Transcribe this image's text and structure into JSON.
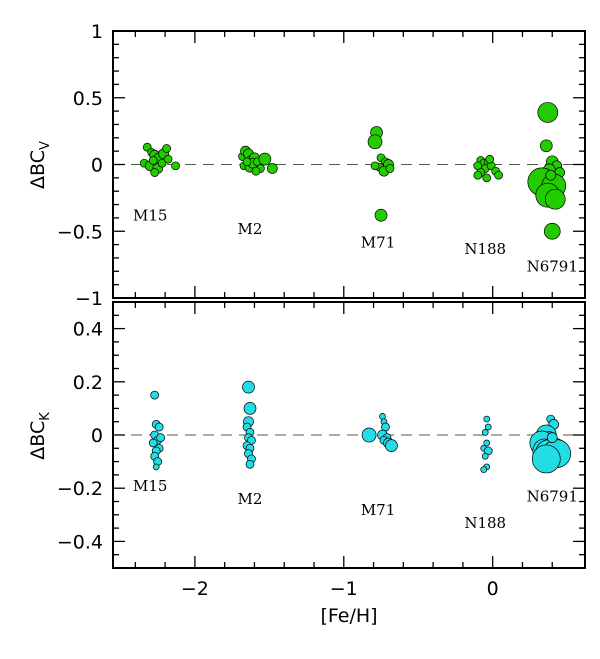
{
  "chart_data": [
    {
      "type": "scatter",
      "panel": "top",
      "ylabel_main": "ΔBC",
      "ylabel_sub": "V",
      "xlim": [
        -2.55,
        0.62
      ],
      "ylim": [
        -1,
        1
      ],
      "yticks": [
        {
          "v": 1,
          "label": "1"
        },
        {
          "v": 0.5,
          "label": "0.5"
        },
        {
          "v": 0,
          "label": "0"
        },
        {
          "v": -0.5,
          "label": "−0.5"
        },
        {
          "v": -1,
          "label": "−1"
        }
      ],
      "reference_line": 0,
      "marker_color": "#22cc00",
      "clusters": [
        {
          "name": "M15",
          "label_pos": {
            "x": -2.3,
            "y": -0.42
          },
          "points": [
            [
              -2.32,
              0.13
            ],
            [
              -2.29,
              0.09
            ],
            [
              -2.27,
              0.07
            ],
            [
              -2.24,
              0.05
            ],
            [
              -2.21,
              0.08
            ],
            [
              -2.19,
              0.12
            ],
            [
              -2.34,
              0.01
            ],
            [
              -2.3,
              -0.01
            ],
            [
              -2.28,
              0.03
            ],
            [
              -2.25,
              -0.03
            ],
            [
              -2.22,
              0.01
            ],
            [
              -2.27,
              -0.06
            ],
            [
              -2.18,
              0.04
            ],
            [
              -2.13,
              -0.01
            ]
          ],
          "sizes": [
            4,
            4,
            5,
            5,
            5,
            4,
            4,
            5,
            4,
            5,
            4,
            4,
            4,
            4
          ]
        },
        {
          "name": "M2",
          "label_pos": {
            "x": -1.63,
            "y": -0.52
          },
          "points": [
            [
              -1.68,
              0.06
            ],
            [
              -1.66,
              0.1
            ],
            [
              -1.64,
              0.08
            ],
            [
              -1.62,
              0.03
            ],
            [
              -1.6,
              0.05
            ],
            [
              -1.67,
              -0.01
            ],
            [
              -1.63,
              -0.02
            ],
            [
              -1.61,
              0.01
            ],
            [
              -1.58,
              0.02
            ],
            [
              -1.56,
              -0.03
            ],
            [
              -1.53,
              0.04
            ],
            [
              -1.48,
              -0.03
            ],
            [
              -1.65,
              0.02
            ],
            [
              -1.59,
              -0.05
            ]
          ],
          "sizes": [
            4,
            5,
            5,
            5,
            5,
            4,
            5,
            5,
            4,
            4,
            6,
            5,
            4,
            4
          ]
        },
        {
          "name": "M71",
          "label_pos": {
            "x": -0.77,
            "y": -0.62
          },
          "points": [
            [
              -0.78,
              0.24
            ],
            [
              -0.79,
              0.17
            ],
            [
              -0.75,
              0.05
            ],
            [
              -0.72,
              0.02
            ],
            [
              -0.7,
              0.0
            ],
            [
              -0.76,
              -0.02
            ],
            [
              -0.73,
              -0.05
            ],
            [
              -0.79,
              -0.01
            ],
            [
              -0.69,
              -0.03
            ],
            [
              -0.75,
              -0.38
            ]
          ],
          "sizes": [
            6,
            7,
            4,
            4,
            5,
            4,
            5,
            4,
            4,
            6
          ]
        },
        {
          "name": "N188",
          "label_pos": {
            "x": -0.05,
            "y": -0.67
          },
          "points": [
            [
              -0.08,
              0.03
            ],
            [
              -0.06,
              0.01
            ],
            [
              -0.03,
              0.02
            ],
            [
              -0.1,
              -0.01
            ],
            [
              -0.05,
              -0.03
            ],
            [
              -0.01,
              -0.01
            ],
            [
              -0.08,
              -0.06
            ],
            [
              -0.04,
              -0.1
            ],
            [
              0.02,
              -0.05
            ],
            [
              0.04,
              -0.08
            ],
            [
              -0.1,
              -0.08
            ],
            [
              -0.02,
              0.04
            ]
          ],
          "sizes": [
            4,
            4,
            4,
            4,
            4,
            4,
            4,
            4,
            4,
            4,
            4,
            4
          ]
        },
        {
          "name": "N6791",
          "label_pos": {
            "x": 0.4,
            "y": -0.8
          },
          "points": [
            [
              0.37,
              0.39
            ],
            [
              0.36,
              0.14
            ],
            [
              0.4,
              0.02
            ],
            [
              0.43,
              -0.01
            ],
            [
              0.38,
              -0.04
            ],
            [
              0.45,
              -0.06
            ],
            [
              0.33,
              -0.13
            ],
            [
              0.41,
              -0.16
            ],
            [
              0.37,
              -0.23
            ],
            [
              0.42,
              -0.26
            ],
            [
              0.4,
              -0.5
            ],
            [
              0.39,
              -0.08
            ]
          ],
          "sizes": [
            10,
            6,
            6,
            5,
            6,
            5,
            14,
            12,
            12,
            10,
            8,
            5
          ]
        }
      ]
    },
    {
      "type": "scatter",
      "panel": "bottom",
      "xlabel": "[Fe/H]",
      "ylabel_main": "ΔBC",
      "ylabel_sub": "K",
      "xlim": [
        -2.55,
        0.62
      ],
      "ylim": [
        -0.5,
        0.5
      ],
      "xticks": [
        {
          "v": -2,
          "label": "−2"
        },
        {
          "v": -1,
          "label": "−1"
        },
        {
          "v": 0,
          "label": "0"
        }
      ],
      "yticks": [
        {
          "v": 0.4,
          "label": "0.4"
        },
        {
          "v": 0.2,
          "label": "0.2"
        },
        {
          "v": 0,
          "label": "0"
        },
        {
          "v": -0.2,
          "label": "−0.2"
        },
        {
          "v": -0.4,
          "label": "−0.4"
        }
      ],
      "reference_line": 0,
      "marker_color": "#22dde6",
      "clusters": [
        {
          "name": "M15",
          "label_pos": {
            "x": -2.3,
            "y": -0.21
          },
          "points": [
            [
              -2.27,
              0.15
            ],
            [
              -2.26,
              0.04
            ],
            [
              -2.24,
              0.03
            ],
            [
              -2.27,
              0.0
            ],
            [
              -2.25,
              -0.02
            ],
            [
              -2.28,
              -0.03
            ],
            [
              -2.24,
              -0.05
            ],
            [
              -2.26,
              -0.06
            ],
            [
              -2.27,
              -0.08
            ],
            [
              -2.25,
              -0.1
            ],
            [
              -2.26,
              -0.12
            ],
            [
              -2.23,
              -0.01
            ]
          ],
          "sizes": [
            4,
            4,
            4,
            4,
            4,
            4,
            4,
            4,
            4,
            4,
            3,
            4
          ]
        },
        {
          "name": "M2",
          "label_pos": {
            "x": -1.63,
            "y": -0.26
          },
          "points": [
            [
              -1.64,
              0.18
            ],
            [
              -1.63,
              0.1
            ],
            [
              -1.64,
              0.05
            ],
            [
              -1.65,
              0.03
            ],
            [
              -1.63,
              0.01
            ],
            [
              -1.64,
              -0.01
            ],
            [
              -1.62,
              -0.02
            ],
            [
              -1.65,
              -0.04
            ],
            [
              -1.63,
              -0.05
            ],
            [
              -1.64,
              -0.07
            ],
            [
              -1.62,
              -0.09
            ],
            [
              -1.63,
              -0.11
            ]
          ],
          "sizes": [
            6,
            6,
            5,
            4,
            4,
            4,
            4,
            4,
            4,
            4,
            4,
            4
          ]
        },
        {
          "name": "M71",
          "label_pos": {
            "x": -0.77,
            "y": -0.3
          },
          "points": [
            [
              -0.74,
              0.07
            ],
            [
              -0.73,
              0.05
            ],
            [
              -0.72,
              0.03
            ],
            [
              -0.83,
              0.0
            ],
            [
              -0.74,
              0.0
            ],
            [
              -0.71,
              -0.01
            ],
            [
              -0.73,
              -0.02
            ],
            [
              -0.7,
              -0.03
            ],
            [
              -0.68,
              -0.04
            ]
          ],
          "sizes": [
            3,
            3,
            4,
            7,
            5,
            4,
            4,
            5,
            6
          ]
        },
        {
          "name": "N188",
          "label_pos": {
            "x": -0.05,
            "y": -0.35
          },
          "points": [
            [
              -0.04,
              0.06
            ],
            [
              -0.03,
              0.03
            ],
            [
              -0.05,
              0.01
            ],
            [
              -0.04,
              -0.03
            ],
            [
              -0.06,
              -0.05
            ],
            [
              -0.03,
              -0.06
            ],
            [
              -0.05,
              -0.08
            ],
            [
              -0.04,
              -0.12
            ],
            [
              -0.06,
              -0.13
            ]
          ],
          "sizes": [
            3,
            3,
            3,
            3,
            3,
            4,
            3,
            3,
            3
          ]
        },
        {
          "name": "N6791",
          "label_pos": {
            "x": 0.4,
            "y": -0.25
          },
          "points": [
            [
              0.39,
              0.06
            ],
            [
              0.41,
              0.04
            ],
            [
              0.36,
              0.0
            ],
            [
              0.38,
              -0.01
            ],
            [
              0.4,
              -0.02
            ],
            [
              0.33,
              -0.03
            ],
            [
              0.42,
              -0.05
            ],
            [
              0.35,
              -0.06
            ],
            [
              0.38,
              -0.07
            ],
            [
              0.43,
              -0.07
            ],
            [
              0.36,
              -0.09
            ],
            [
              0.4,
              -0.01
            ]
          ],
          "sizes": [
            4,
            5,
            10,
            6,
            5,
            12,
            10,
            12,
            14,
            14,
            14,
            5
          ]
        }
      ]
    }
  ]
}
